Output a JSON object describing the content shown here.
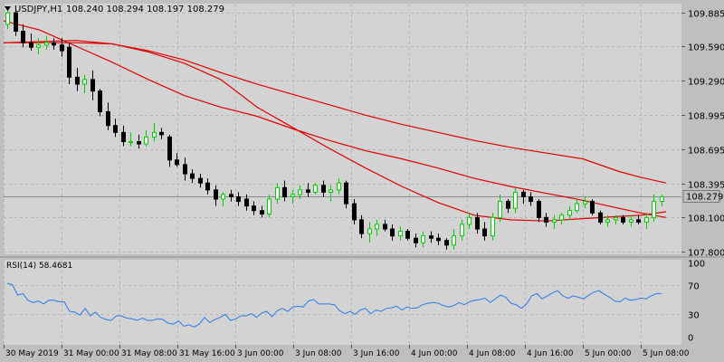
{
  "colors": {
    "background": "#bfbfbf",
    "plot_background": "#d3d3d3",
    "grid": "#b5b5b5",
    "axis_text": "#000000",
    "bull_candle_body": "#ffffff",
    "bull_candle_outline": "#00cc00",
    "bear_candle_body": "#000000",
    "bear_candle_outline": "#000000",
    "ma_line": "#e00000",
    "rsi_line": "#2a7be8",
    "last_price_label_bg": "#bfbfbf",
    "separator": "#8f8f8f"
  },
  "chart_data": [
    {
      "type": "candlestick",
      "symbol_header": "USDJPY,H1",
      "ohlc_header": "108.240 108.294 108.197 108.279",
      "header_icon": "triangle-down-icon",
      "last_price_label": "108.279",
      "y_tick_labels": [
        "109.885",
        "109.590",
        "109.290",
        "108.995",
        "108.695",
        "108.395",
        "108.100",
        "107.800"
      ],
      "y_ticks": [
        109.885,
        109.59,
        109.29,
        108.995,
        108.695,
        108.395,
        108.1,
        107.8
      ],
      "ylim": [
        107.78,
        109.96
      ],
      "grid": true,
      "ohlc": [
        [
          109.78,
          109.92,
          109.74,
          109.88
        ],
        [
          109.88,
          109.9,
          109.68,
          109.72
        ],
        [
          109.72,
          109.78,
          109.58,
          109.62
        ],
        [
          109.62,
          109.7,
          109.55,
          109.58
        ],
        [
          109.58,
          109.66,
          109.52,
          109.6
        ],
        [
          109.6,
          109.68,
          109.56,
          109.62
        ],
        [
          109.62,
          109.66,
          109.56,
          109.6
        ],
        [
          109.6,
          109.66,
          109.5,
          109.55
        ],
        [
          109.58,
          109.62,
          109.26,
          109.32
        ],
        [
          109.32,
          109.4,
          109.2,
          109.26
        ],
        [
          109.26,
          109.34,
          109.18,
          109.3
        ],
        [
          109.3,
          109.38,
          109.12,
          109.2
        ],
        [
          109.2,
          109.22,
          108.98,
          109.02
        ],
        [
          109.02,
          109.1,
          108.86,
          108.9
        ],
        [
          108.9,
          108.96,
          108.8,
          108.84
        ],
        [
          108.84,
          108.9,
          108.72,
          108.76
        ],
        [
          108.76,
          108.84,
          108.72,
          108.76
        ],
        [
          108.76,
          108.82,
          108.7,
          108.74
        ],
        [
          108.74,
          108.86,
          108.72,
          108.8
        ],
        [
          108.8,
          108.92,
          108.76,
          108.84
        ],
        [
          108.84,
          108.88,
          108.78,
          108.82
        ],
        [
          108.8,
          108.82,
          108.54,
          108.6
        ],
        [
          108.6,
          108.66,
          108.54,
          108.56
        ],
        [
          108.56,
          108.62,
          108.42,
          108.48
        ],
        [
          108.48,
          108.52,
          108.4,
          108.44
        ],
        [
          108.44,
          108.48,
          108.36,
          108.4
        ],
        [
          108.4,
          108.44,
          108.3,
          108.34
        ],
        [
          108.34,
          108.38,
          108.2,
          108.26
        ],
        [
          108.26,
          108.32,
          108.2,
          108.3
        ],
        [
          108.3,
          108.34,
          108.24,
          108.28
        ],
        [
          108.28,
          108.32,
          108.2,
          108.24
        ],
        [
          108.26,
          108.3,
          108.16,
          108.2
        ],
        [
          108.2,
          108.24,
          108.12,
          108.16
        ],
        [
          108.16,
          108.2,
          108.1,
          108.13
        ],
        [
          108.13,
          108.3,
          108.1,
          108.26
        ],
        [
          108.26,
          108.4,
          108.22,
          108.36
        ],
        [
          108.36,
          108.42,
          108.24,
          108.28
        ],
        [
          108.28,
          108.34,
          108.22,
          108.3
        ],
        [
          108.3,
          108.38,
          108.26,
          108.34
        ],
        [
          108.34,
          108.4,
          108.28,
          108.32
        ],
        [
          108.32,
          108.4,
          108.3,
          108.38
        ],
        [
          108.38,
          108.42,
          108.28,
          108.32
        ],
        [
          108.32,
          108.38,
          108.24,
          108.34
        ],
        [
          108.34,
          108.44,
          108.3,
          108.4
        ],
        [
          108.4,
          108.42,
          108.18,
          108.22
        ],
        [
          108.22,
          108.26,
          108.04,
          108.08
        ],
        [
          108.08,
          108.12,
          107.92,
          107.96
        ],
        [
          107.96,
          108.06,
          107.88,
          108.0
        ],
        [
          108.0,
          108.08,
          107.94,
          108.04
        ],
        [
          108.04,
          108.08,
          107.98,
          108.0
        ],
        [
          108.0,
          108.04,
          107.9,
          107.94
        ],
        [
          107.94,
          108.02,
          107.9,
          107.98
        ],
        [
          107.98,
          108.0,
          107.9,
          107.92
        ],
        [
          107.92,
          107.96,
          107.84,
          107.88
        ],
        [
          107.88,
          107.98,
          107.84,
          107.94
        ],
        [
          107.94,
          107.98,
          107.88,
          107.92
        ],
        [
          107.92,
          107.96,
          107.86,
          107.9
        ],
        [
          107.9,
          107.92,
          107.82,
          107.86
        ],
        [
          107.86,
          108.0,
          107.82,
          107.94
        ],
        [
          107.94,
          108.08,
          107.9,
          108.04
        ],
        [
          108.04,
          108.14,
          108.0,
          108.1
        ],
        [
          108.1,
          108.14,
          107.96,
          108.0
        ],
        [
          108.0,
          108.06,
          107.9,
          107.94
        ],
        [
          107.94,
          108.14,
          107.9,
          108.1
        ],
        [
          108.1,
          108.3,
          108.06,
          108.24
        ],
        [
          108.24,
          108.26,
          108.14,
          108.18
        ],
        [
          108.18,
          108.36,
          108.14,
          108.32
        ],
        [
          108.32,
          108.34,
          108.22,
          108.28
        ],
        [
          108.28,
          108.32,
          108.2,
          108.24
        ],
        [
          108.24,
          108.26,
          108.06,
          108.1
        ],
        [
          108.1,
          108.14,
          108.02,
          108.06
        ],
        [
          108.06,
          108.12,
          108.0,
          108.08
        ],
        [
          108.08,
          108.14,
          108.04,
          108.12
        ],
        [
          108.12,
          108.2,
          108.08,
          108.16
        ],
        [
          108.16,
          108.26,
          108.14,
          108.22
        ],
        [
          108.22,
          108.28,
          108.18,
          108.24
        ],
        [
          108.24,
          108.26,
          108.12,
          108.14
        ],
        [
          108.14,
          108.16,
          108.04,
          108.06
        ],
        [
          108.06,
          108.12,
          108.02,
          108.08
        ],
        [
          108.08,
          108.12,
          108.04,
          108.1
        ],
        [
          108.1,
          108.12,
          108.04,
          108.06
        ],
        [
          108.06,
          108.12,
          108.02,
          108.08
        ],
        [
          108.08,
          108.12,
          108.04,
          108.06
        ],
        [
          108.06,
          108.14,
          108.0,
          108.1
        ],
        [
          108.1,
          108.3,
          108.06,
          108.24
        ],
        [
          108.24,
          108.3,
          108.2,
          108.28
        ]
      ],
      "moving_averages": [
        {
          "values": [
            [
              0,
              109.81
            ],
            [
              40,
              109.73
            ],
            [
              80,
              109.59
            ],
            [
              120,
              109.45
            ],
            [
              160,
              109.3
            ],
            [
              200,
              109.16
            ],
            [
              240,
              109.06
            ],
            [
              280,
              108.98
            ],
            [
              320,
              108.87
            ],
            [
              360,
              108.77
            ],
            [
              400,
              108.68
            ],
            [
              440,
              108.61
            ],
            [
              480,
              108.53
            ],
            [
              520,
              108.44
            ],
            [
              560,
              108.37
            ],
            [
              600,
              108.31
            ],
            [
              640,
              108.25
            ],
            [
              680,
              108.18
            ],
            [
              704,
              108.14
            ],
            [
              732,
              108.1
            ]
          ]
        },
        {
          "values": [
            [
              0,
              109.62
            ],
            [
              80,
              109.62
            ],
            [
              120,
              109.61
            ],
            [
              160,
              109.55
            ],
            [
              200,
              109.47
            ],
            [
              240,
              109.36
            ],
            [
              280,
              109.26
            ],
            [
              320,
              109.17
            ],
            [
              360,
              109.08
            ],
            [
              400,
              108.99
            ],
            [
              440,
              108.91
            ],
            [
              480,
              108.84
            ],
            [
              520,
              108.77
            ],
            [
              560,
              108.71
            ],
            [
              600,
              108.66
            ],
            [
              640,
              108.61
            ],
            [
              680,
              108.5
            ],
            [
              704,
              108.45
            ],
            [
              732,
              108.4
            ]
          ]
        },
        {
          "values": [
            [
              0,
              109.62
            ],
            [
              80,
              109.64
            ],
            [
              120,
              109.61
            ],
            [
              160,
              109.54
            ],
            [
              200,
              109.44
            ],
            [
              240,
              109.3
            ],
            [
              280,
              109.06
            ],
            [
              320,
              108.88
            ],
            [
              360,
              108.7
            ],
            [
              400,
              108.53
            ],
            [
              440,
              108.37
            ],
            [
              480,
              108.23
            ],
            [
              520,
              108.12
            ],
            [
              560,
              108.08
            ],
            [
              600,
              108.07
            ],
            [
              640,
              108.09
            ],
            [
              680,
              108.11
            ],
            [
              704,
              108.12
            ],
            [
              732,
              108.15
            ]
          ]
        }
      ]
    },
    {
      "type": "line",
      "title": "RSI(14) 58.4681",
      "y_tick_labels": [
        "100",
        "70",
        "30",
        "0"
      ],
      "y_ticks": [
        100,
        70,
        30,
        0
      ],
      "ylim": [
        0,
        100
      ],
      "series": [
        {
          "values": [
            72,
            70,
            56,
            58,
            49,
            46,
            48,
            44,
            49,
            49,
            47,
            47,
            34,
            33,
            29,
            38,
            28,
            33,
            26,
            23,
            22,
            28,
            28,
            25,
            24,
            22,
            25,
            22,
            22,
            24,
            23,
            18,
            17,
            21,
            14,
            16,
            13,
            17,
            26,
            19,
            23,
            26,
            30,
            22,
            24,
            28,
            28,
            31,
            26,
            32,
            34,
            27,
            35,
            38,
            34,
            40,
            41,
            40,
            48,
            50,
            44,
            44,
            44,
            43,
            35,
            31,
            34,
            30,
            36,
            38,
            31,
            36,
            34,
            38,
            39,
            41,
            36,
            40,
            38,
            39,
            43,
            45,
            46,
            45,
            42,
            40,
            42,
            46,
            43,
            47,
            49,
            50,
            52,
            46,
            51,
            56,
            53,
            45,
            43,
            38,
            44,
            55,
            58,
            51,
            55,
            59,
            62,
            55,
            52,
            55,
            53,
            51,
            56,
            60,
            62,
            57,
            53,
            48,
            47,
            52,
            49,
            50,
            52,
            51,
            55,
            58,
            58
          ]
        }
      ]
    }
  ],
  "time_axis_labels": [
    "30 May 2019",
    "31 May 00:00",
    "31 May 08:00",
    "31 May 16:00",
    "3 Jun 00:00",
    "3 Jun 08:00",
    "3 Jun 16:00",
    "4 Jun 00:00",
    "4 Jun 08:00",
    "4 Jun 16:00",
    "5 Jun 00:00",
    "5 Jun 08:00"
  ]
}
